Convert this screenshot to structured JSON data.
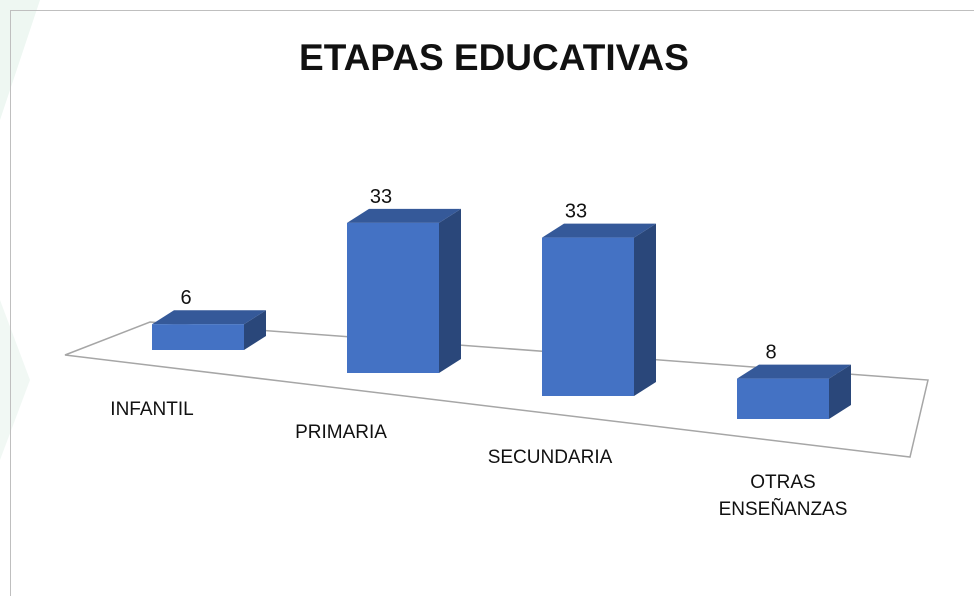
{
  "chart_data": {
    "type": "bar3d",
    "title": "ETAPAS EDUCATIVAS",
    "categories": [
      "INFANTIL",
      "PRIMARIA",
      "SECUNDARIA",
      "OTRAS ENSEÑANZAS"
    ],
    "values": [
      6,
      33,
      33,
      8
    ],
    "color": "#4472c4"
  }
}
